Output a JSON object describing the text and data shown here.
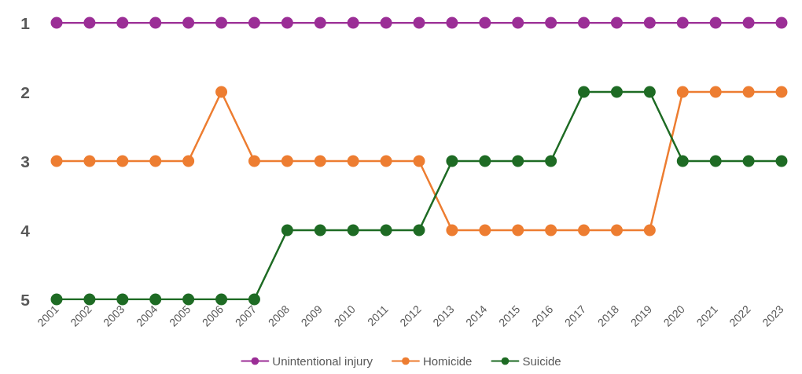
{
  "chart_data": {
    "type": "line",
    "categories": [
      "2001",
      "2002",
      "2003",
      "2004",
      "2005",
      "2006",
      "2007",
      "2008",
      "2009",
      "2010",
      "2011",
      "2012",
      "2013",
      "2014",
      "2015",
      "2016",
      "2017",
      "2018",
      "2019",
      "2020",
      "2021",
      "2022",
      "2023"
    ],
    "series": [
      {
        "name": "Unintentional injury",
        "color": "#9b2e96",
        "values": [
          1,
          1,
          1,
          1,
          1,
          1,
          1,
          1,
          1,
          1,
          1,
          1,
          1,
          1,
          1,
          1,
          1,
          1,
          1,
          1,
          1,
          1,
          1
        ]
      },
      {
        "name": "Homicide",
        "color": "#ed7d31",
        "values": [
          3,
          3,
          3,
          3,
          3,
          2,
          3,
          3,
          3,
          3,
          3,
          3,
          4,
          4,
          4,
          4,
          4,
          4,
          4,
          2,
          2,
          2,
          2
        ]
      },
      {
        "name": "Suicide",
        "color": "#1e6b24",
        "values": [
          5,
          5,
          5,
          5,
          5,
          5,
          5,
          4,
          4,
          4,
          4,
          4,
          3,
          3,
          3,
          3,
          2,
          2,
          2,
          3,
          3,
          3,
          3
        ]
      }
    ],
    "ylim": [
      5,
      1
    ],
    "yticks": [
      1,
      2,
      3,
      4,
      5
    ],
    "grid": false,
    "legend": "bottom",
    "marker": "circle",
    "line_style": "solid"
  }
}
